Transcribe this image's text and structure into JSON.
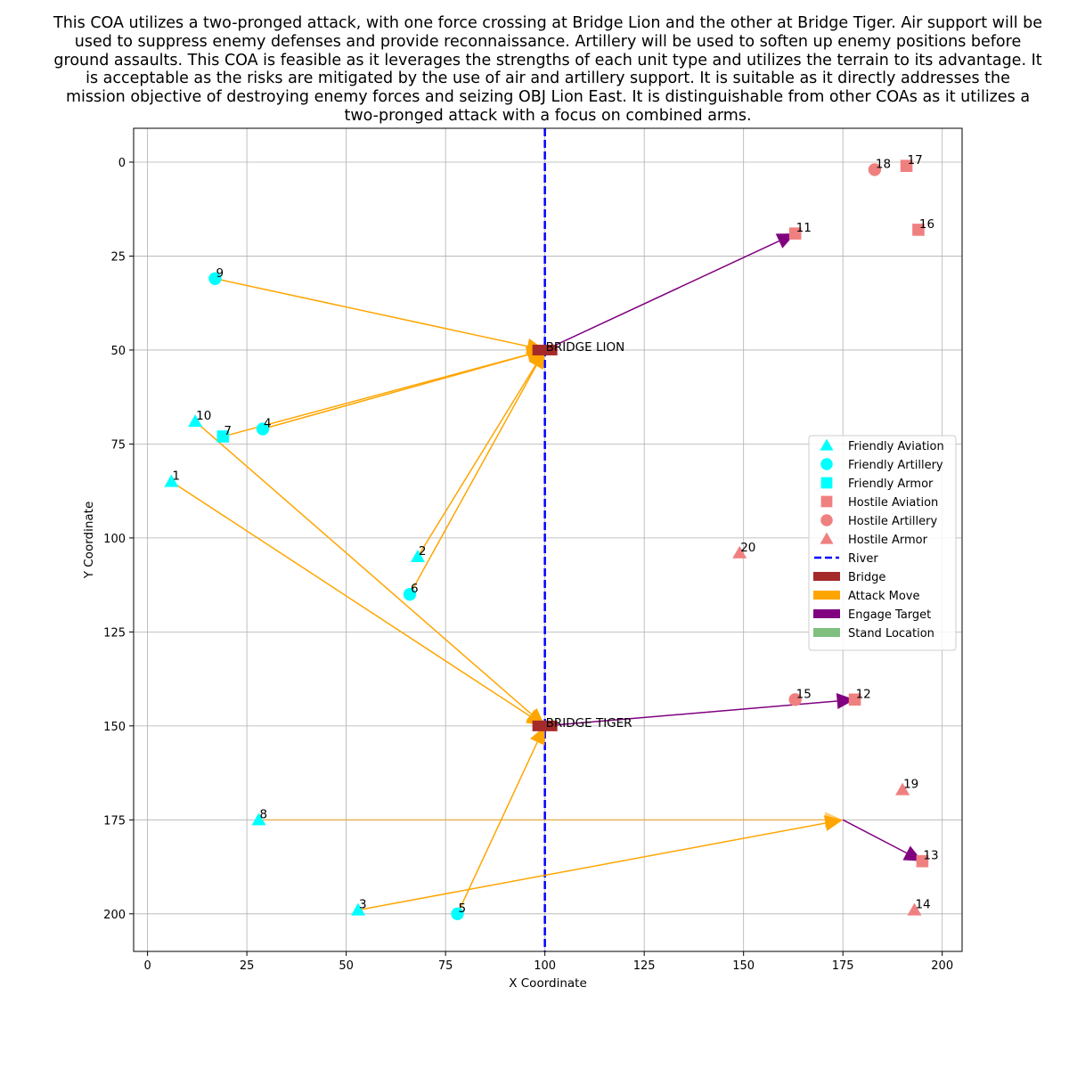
{
  "title": "This COA utilizes a two-pronged attack, with one force crossing at Bridge Lion and the other at Bridge Tiger. Air support will be used to suppress enemy defenses and provide reconnaissance. Artillery will be used to soften up enemy positions before ground assaults. This COA is feasible as it leverages the strengths of each unit type and utilizes the terrain to its advantage. It is acceptable as the risks are mitigated by the use of air and artillery support. It is suitable as it directly addresses the mission objective of destroying enemy forces and seizing OBJ Lion East. It is distinguishable from other COAs as it utilizes a two-pronged attack with a focus on combined arms.",
  "chart_data": {
    "type": "scatter",
    "xlabel": "X Coordinate",
    "ylabel": "Y Coordinate",
    "xlim": [
      -3.5,
      205
    ],
    "ylim": [
      210,
      -9
    ],
    "y_inverted": true,
    "grid": true,
    "xticks": [
      0,
      25,
      50,
      75,
      100,
      125,
      150,
      175,
      200
    ],
    "yticks": [
      0,
      25,
      50,
      75,
      100,
      125,
      150,
      175,
      200
    ],
    "colors": {
      "friendly": "#00ffff",
      "hostile": "#f08080",
      "river": "#0000ff",
      "bridge": "#a52a2a",
      "attack": "#ffa500",
      "engage": "#800080",
      "stand": "#7fbf7f",
      "grid": "#b0b0b0"
    },
    "units": [
      {
        "id": "1",
        "x": 6,
        "y": 85,
        "side": "friendly",
        "marker": "triangle"
      },
      {
        "id": "2",
        "x": 68,
        "y": 105,
        "side": "friendly",
        "marker": "triangle"
      },
      {
        "id": "3",
        "x": 53,
        "y": 199,
        "side": "friendly",
        "marker": "triangle"
      },
      {
        "id": "4",
        "x": 29,
        "y": 71,
        "side": "friendly",
        "marker": "circle"
      },
      {
        "id": "5",
        "x": 78,
        "y": 200,
        "side": "friendly",
        "marker": "circle"
      },
      {
        "id": "6",
        "x": 66,
        "y": 115,
        "side": "friendly",
        "marker": "circle"
      },
      {
        "id": "7",
        "x": 19,
        "y": 73,
        "side": "friendly",
        "marker": "square"
      },
      {
        "id": "8",
        "x": 28,
        "y": 175,
        "side": "friendly",
        "marker": "triangle"
      },
      {
        "id": "9",
        "x": 17,
        "y": 31,
        "side": "friendly",
        "marker": "circle"
      },
      {
        "id": "10",
        "x": 12,
        "y": 69,
        "side": "friendly",
        "marker": "triangle"
      },
      {
        "id": "11",
        "x": 163,
        "y": 19,
        "side": "hostile",
        "marker": "square"
      },
      {
        "id": "12",
        "x": 178,
        "y": 143,
        "side": "hostile",
        "marker": "square"
      },
      {
        "id": "13",
        "x": 195,
        "y": 186,
        "side": "hostile",
        "marker": "square"
      },
      {
        "id": "14",
        "x": 193,
        "y": 199,
        "side": "hostile",
        "marker": "triangle"
      },
      {
        "id": "15",
        "x": 163,
        "y": 143,
        "side": "hostile",
        "marker": "circle"
      },
      {
        "id": "16",
        "x": 194,
        "y": 18,
        "side": "hostile",
        "marker": "square"
      },
      {
        "id": "17",
        "x": 191,
        "y": 1,
        "side": "hostile",
        "marker": "square"
      },
      {
        "id": "18",
        "x": 183,
        "y": 2,
        "side": "hostile",
        "marker": "circle"
      },
      {
        "id": "19",
        "x": 190,
        "y": 167,
        "side": "hostile",
        "marker": "triangle"
      },
      {
        "id": "20",
        "x": 149,
        "y": 104,
        "side": "hostile",
        "marker": "triangle"
      }
    ],
    "river": {
      "x": 100,
      "y_from": -9,
      "y_to": 210
    },
    "bridges": [
      {
        "name": "BRIDGE LION",
        "x": 100,
        "y": 50
      },
      {
        "name": "BRIDGE TIGER",
        "x": 100,
        "y": 150
      }
    ],
    "attack_moves": [
      {
        "from": [
          17,
          31
        ],
        "to": [
          100,
          50
        ]
      },
      {
        "from": [
          29,
          71
        ],
        "to": [
          100,
          50
        ]
      },
      {
        "from": [
          19,
          73
        ],
        "to": [
          100,
          50
        ]
      },
      {
        "from": [
          68,
          105
        ],
        "to": [
          100,
          50
        ]
      },
      {
        "from": [
          66,
          115
        ],
        "to": [
          100,
          50
        ]
      },
      {
        "from": [
          12,
          69
        ],
        "to": [
          100,
          150
        ]
      },
      {
        "from": [
          6,
          85
        ],
        "to": [
          100,
          150
        ]
      },
      {
        "from": [
          78,
          200
        ],
        "to": [
          100,
          150
        ]
      },
      {
        "from": [
          53,
          199
        ],
        "to": [
          175,
          175
        ]
      },
      {
        "from": [
          28,
          175
        ],
        "to": [
          175,
          175
        ],
        "faded": true
      }
    ],
    "engage_targets": [
      {
        "from": [
          100,
          50
        ],
        "to": [
          163,
          19
        ]
      },
      {
        "from": [
          100,
          150
        ],
        "to": [
          178,
          143
        ]
      },
      {
        "from": [
          175,
          175
        ],
        "to": [
          195,
          186
        ]
      }
    ],
    "legend": {
      "position": "center-right",
      "entries": [
        {
          "label": "Friendly Aviation",
          "kind": "triangle",
          "side": "friendly"
        },
        {
          "label": "Friendly Artillery",
          "kind": "circle",
          "side": "friendly"
        },
        {
          "label": "Friendly Armor",
          "kind": "square",
          "side": "friendly"
        },
        {
          "label": "Hostile Aviation",
          "kind": "square",
          "side": "hostile"
        },
        {
          "label": "Hostile Artillery",
          "kind": "circle",
          "side": "hostile"
        },
        {
          "label": "Hostile Armor",
          "kind": "triangle",
          "side": "hostile"
        },
        {
          "label": "River",
          "kind": "dash",
          "side": "river"
        },
        {
          "label": "Bridge",
          "kind": "patch",
          "side": "bridge"
        },
        {
          "label": "Attack Move",
          "kind": "patch",
          "side": "attack"
        },
        {
          "label": "Engage Target",
          "kind": "patch",
          "side": "engage"
        },
        {
          "label": "Stand Location",
          "kind": "patch",
          "side": "stand"
        }
      ]
    }
  }
}
